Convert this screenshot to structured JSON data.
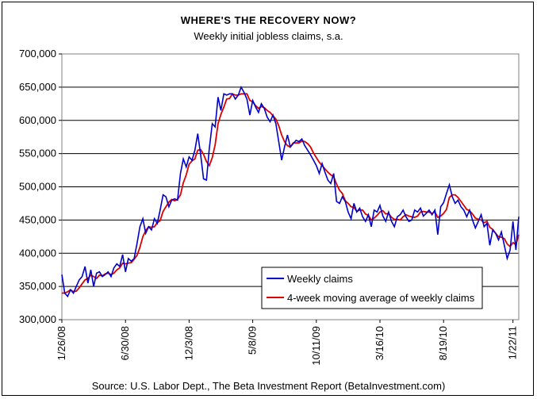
{
  "chart_data": {
    "type": "line",
    "title": "WHERE'S THE RECOVERY NOW?",
    "subtitle": "Weekly initial jobless claims, s.a.",
    "xlabel": "",
    "ylabel": "",
    "ylim": [
      300000,
      700000
    ],
    "yticks": [
      300000,
      350000,
      400000,
      450000,
      500000,
      550000,
      600000,
      650000,
      700000
    ],
    "ytick_labels": [
      "300,000",
      "350,000",
      "400,000",
      "450,000",
      "500,000",
      "550,000",
      "600,000",
      "650,000",
      "700,000"
    ],
    "xtick_labels": [
      "1/26/08",
      "6/30/08",
      "12/3/08",
      "5/8/09",
      "10/11/09",
      "3/16/10",
      "8/19/10",
      "1/22/11"
    ],
    "xtick_weeks": [
      0,
      22,
      44,
      66,
      88,
      110,
      132,
      156
    ],
    "grid": "horizontal",
    "legend_position": "bottom-right",
    "colors": {
      "weekly": "#0000cc",
      "average": "#dd0000"
    },
    "series": [
      {
        "name": "Weekly claims",
        "values": [
          368000,
          340000,
          335000,
          345000,
          340000,
          350000,
          360000,
          365000,
          380000,
          355000,
          375000,
          350000,
          370000,
          372000,
          365000,
          368000,
          372000,
          365000,
          378000,
          384000,
          380000,
          398000,
          372000,
          392000,
          388000,
          392000,
          415000,
          440000,
          452000,
          430000,
          440000,
          435000,
          452000,
          445000,
          465000,
          488000,
          485000,
          470000,
          480000,
          482000,
          480000,
          520000,
          542000,
          530000,
          545000,
          540000,
          555000,
          580000,
          548000,
          512000,
          510000,
          558000,
          595000,
          590000,
          635000,
          615000,
          640000,
          638000,
          640000,
          640000,
          632000,
          638000,
          650000,
          642000,
          632000,
          608000,
          630000,
          620000,
          612000,
          625000,
          618000,
          605000,
          598000,
          608000,
          595000,
          568000,
          540000,
          560000,
          578000,
          560000,
          565000,
          570000,
          568000,
          572000,
          562000,
          555000,
          548000,
          540000,
          532000,
          520000,
          535000,
          522000,
          510000,
          505000,
          520000,
          478000,
          475000,
          485000,
          478000,
          462000,
          452000,
          475000,
          462000,
          468000,
          455000,
          448000,
          458000,
          440000,
          465000,
          462000,
          472000,
          456000,
          448000,
          462000,
          448000,
          440000,
          455000,
          458000,
          465000,
          455000,
          448000,
          450000,
          465000,
          462000,
          468000,
          456000,
          460000,
          465000,
          458000,
          465000,
          428000,
          470000,
          476000,
          490000,
          503000,
          485000,
          475000,
          480000,
          470000,
          465000,
          455000,
          465000,
          450000,
          438000,
          448000,
          458000,
          440000,
          445000,
          412000,
          435000,
          430000,
          420000,
          432000,
          412000,
          392000,
          405000,
          448000,
          405000,
          455000
        ]
      },
      {
        "name": "4-week moving average of weekly claims",
        "values": [
          340000,
          340000,
          342000,
          345000,
          342000,
          343000,
          348000,
          354000,
          360000,
          362000,
          367000,
          365000,
          362000,
          367000,
          366000,
          369000,
          370000,
          368000,
          370000,
          375000,
          378000,
          385000,
          384000,
          385000,
          386000,
          391000,
          397000,
          409000,
          425000,
          434000,
          440000,
          439000,
          440000,
          446000,
          449000,
          463000,
          470000,
          477000,
          481000,
          479000,
          481000,
          488000,
          506000,
          518000,
          534000,
          539000,
          542000,
          555000,
          556000,
          549000,
          538000,
          532000,
          544000,
          563000,
          595000,
          609000,
          620000,
          632000,
          633000,
          640000,
          638000,
          638000,
          640000,
          640000,
          640000,
          630000,
          628000,
          622000,
          618000,
          621000,
          619000,
          615000,
          612000,
          607000,
          602000,
          592000,
          578000,
          568000,
          562000,
          560000,
          566000,
          566000,
          566000,
          569000,
          568000,
          565000,
          560000,
          551000,
          544000,
          537000,
          532000,
          527000,
          522000,
          518000,
          515000,
          504000,
          495000,
          490000,
          479000,
          475000,
          470000,
          469000,
          463000,
          465000,
          465000,
          459000,
          457000,
          450000,
          453000,
          457000,
          462000,
          464000,
          459000,
          460000,
          454000,
          451000,
          451000,
          450000,
          455000,
          458000,
          456000,
          455000,
          454000,
          456000,
          462000,
          463000,
          462000,
          462000,
          460000,
          462000,
          454000,
          456000,
          460000,
          466000,
          484000,
          488000,
          488000,
          484000,
          478000,
          472000,
          466000,
          464000,
          459000,
          453000,
          451000,
          450000,
          446000,
          448000,
          439000,
          436000,
          430000,
          425000,
          424000,
          422000,
          414000,
          410000,
          416000,
          413000,
          428000
        ]
      }
    ],
    "source": "Source: U.S. Labor Dept., The Beta Investment Report (BetaInvestment.com)"
  }
}
